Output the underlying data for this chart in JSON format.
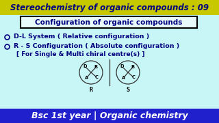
{
  "title": "Stereochemistry of organic compounds : 09",
  "title_bg": "#c8c800",
  "title_color": "#000080",
  "box_text": "Configuration of organic compounds",
  "box_bg": "#e8fafa",
  "box_border": "#000000",
  "bullet1": "D-L System ( Relative configuration )",
  "bullet2": "R - S Configuration ( Absolute configuration )",
  "bullet3": "[ For Single & Multi chiral centre(s) ]",
  "footer": "Bsc 1st year | Organic chemistry",
  "footer_bg": "#2020cc",
  "footer_color": "#ffffff",
  "bg_color": "#c8f5f5",
  "text_color": "#000080",
  "font_size_title": 8.5,
  "font_size_box": 7.5,
  "font_size_bullet": 6.8,
  "font_size_footer": 9.0
}
